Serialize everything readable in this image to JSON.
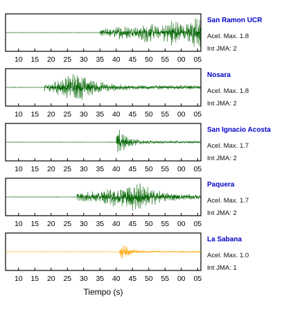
{
  "chart_data": {
    "type": "line",
    "title": "",
    "xlabel": "Tiempo (s)",
    "x_ticks": [
      "10",
      "15",
      "20",
      "25",
      "30",
      "35",
      "40",
      "45",
      "50",
      "55",
      "00",
      "05"
    ],
    "x_range": [
      6,
      66
    ],
    "x_tick_values": [
      10,
      15,
      20,
      25,
      30,
      35,
      40,
      45,
      50,
      55,
      60,
      65
    ],
    "name_color": "#0000cc",
    "stations": [
      {
        "name": "San Ramon UCR",
        "accel_label": "Acel. Max. 1.8",
        "jma_label": "Int JMA: 2",
        "color": "#006400",
        "onset": 35,
        "max_amp": 1.8,
        "envelope": "growing"
      },
      {
        "name": "Nosara",
        "accel_label": "Acel. Max. 1.8",
        "jma_label": "Int JMA: 2",
        "color": "#006400",
        "onset": 18,
        "max_amp": 1.8,
        "envelope": "burst-decay",
        "peak_time": 28
      },
      {
        "name": "San Ignacio Acosta",
        "accel_label": "Acel. Max. 1.7",
        "jma_label": "Int JMA: 2",
        "color": "#006400",
        "onset": 40,
        "max_amp": 1.7,
        "envelope": "spike-decay",
        "peak_time": 40.5
      },
      {
        "name": "Paquera",
        "accel_label": "Acel. Max. 1.7",
        "jma_label": "Int JMA: 2",
        "color": "#006400",
        "onset": 28,
        "max_amp": 1.7,
        "envelope": "burst-decay",
        "peak_time": 47
      },
      {
        "name": "La Sabana",
        "accel_label": "Acel. Max. 1.0",
        "jma_label": "Int JMA: 1",
        "color": "#ffa500",
        "onset": 41,
        "max_amp": 1.0,
        "envelope": "spike-decay",
        "peak_time": 41.5
      }
    ]
  }
}
